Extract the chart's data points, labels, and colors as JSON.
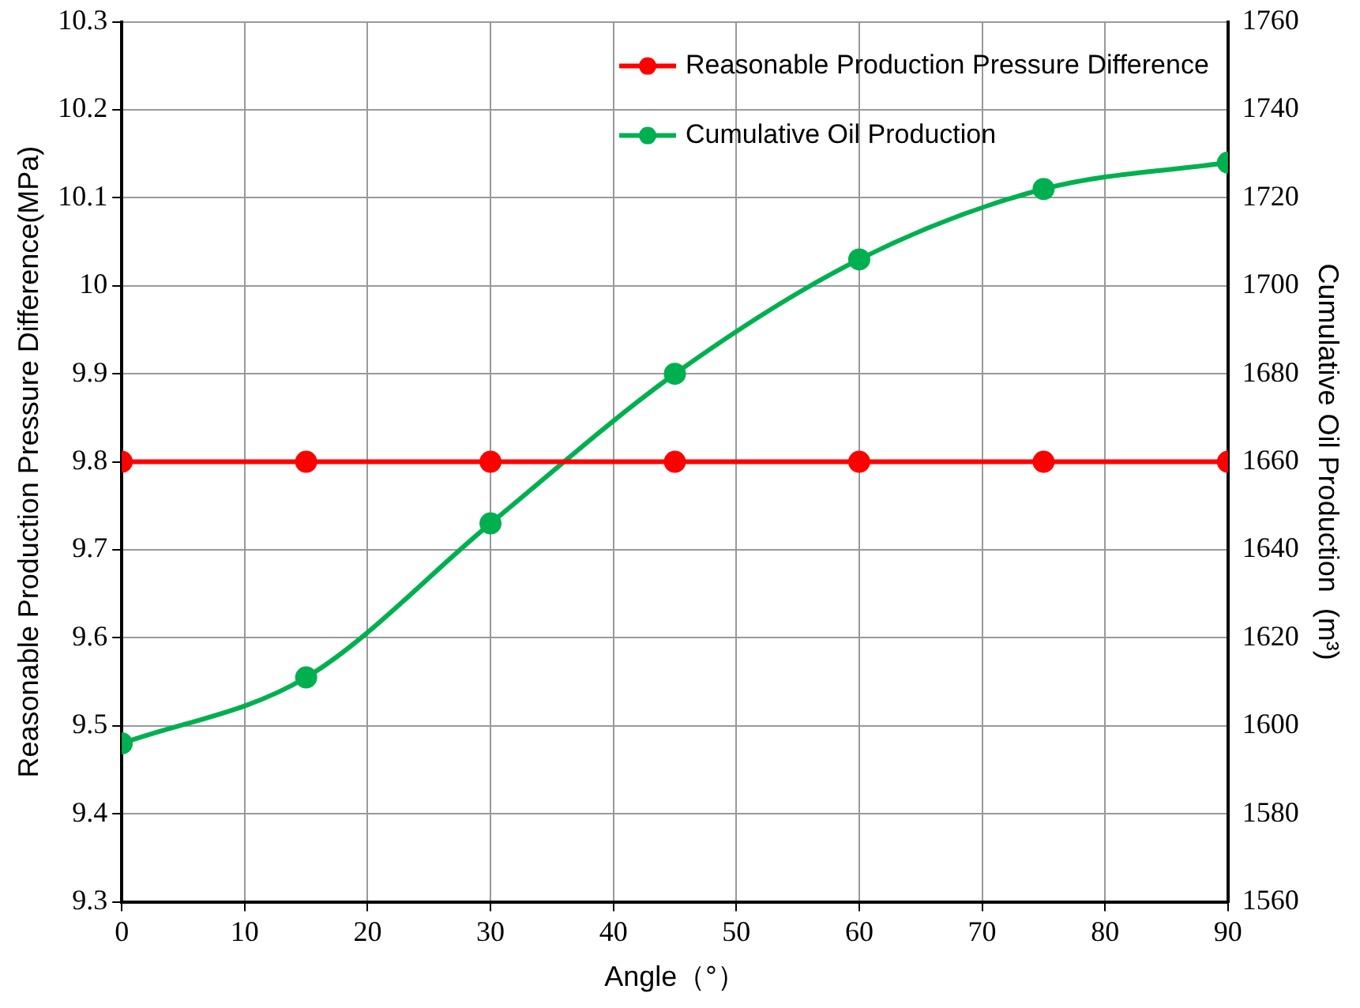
{
  "chart_data": {
    "type": "line",
    "xlabel": "Angle（°）",
    "ylabel": "Reasonable Production Pressure Difference(MPa)",
    "y2label": "Cumulative Oil Production  (m³)",
    "x": [
      0,
      15,
      30,
      45,
      60,
      75,
      90
    ],
    "series": [
      {
        "name": "Reasonable Production Pressure Difference",
        "color": "#ff0000",
        "values": [
          9.8,
          9.8,
          9.8,
          9.8,
          9.8,
          9.8,
          9.8
        ]
      },
      {
        "name": "Cumulative Oil Production",
        "color": "#00b050",
        "axis": "y2",
        "values": [
          1596,
          1611,
          1646,
          1680,
          1706,
          1722,
          1728
        ]
      }
    ],
    "xlim": [
      0,
      90
    ],
    "xticks": [
      0,
      10,
      20,
      30,
      40,
      50,
      60,
      70,
      80,
      90
    ],
    "ylim": [
      9.3,
      10.3
    ],
    "yticks": [
      9.3,
      9.4,
      9.5,
      9.6,
      9.7,
      9.8,
      9.9,
      10,
      10.1,
      10.2,
      10.3
    ],
    "y2lim": [
      1560,
      1760
    ],
    "y2ticks": [
      1560,
      1580,
      1600,
      1620,
      1640,
      1660,
      1680,
      1700,
      1720,
      1740,
      1760
    ],
    "grid": true,
    "legend": "top right",
    "marker": "circle",
    "line_style": "solid"
  }
}
